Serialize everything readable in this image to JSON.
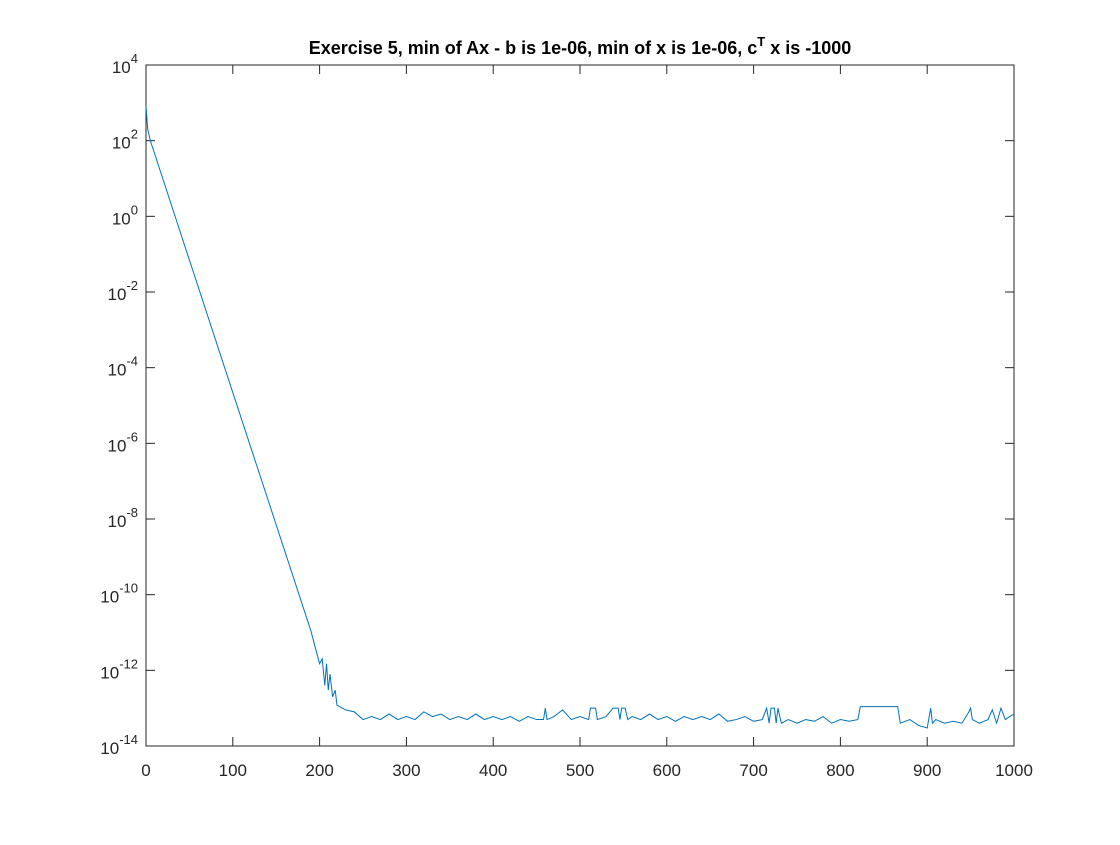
{
  "chart_data": {
    "type": "line",
    "title": [
      "Exercise 5, min of Ax - b is 1e-06, min of x is 1e-06, c",
      "T",
      " x is -1000"
    ],
    "x": [
      0,
      2,
      5,
      50,
      100,
      150,
      190,
      195,
      200,
      203,
      206,
      208,
      210,
      212,
      215,
      218,
      220,
      230,
      240,
      250,
      260,
      270,
      280,
      290,
      300,
      310,
      320,
      330,
      340,
      350,
      360,
      370,
      380,
      390,
      400,
      410,
      420,
      430,
      440,
      450,
      458,
      460,
      462,
      470,
      480,
      490,
      500,
      510,
      512,
      518,
      520,
      530,
      538,
      544,
      546,
      548,
      552,
      555,
      560,
      570,
      580,
      590,
      600,
      610,
      620,
      630,
      640,
      650,
      660,
      670,
      680,
      690,
      700,
      710,
      715,
      718,
      720,
      724,
      726,
      728,
      732,
      740,
      750,
      760,
      770,
      780,
      790,
      800,
      810,
      820,
      823,
      866,
      869,
      880,
      890,
      900,
      904,
      906,
      910,
      920,
      930,
      940,
      948,
      950,
      952,
      960,
      970,
      975,
      980,
      985,
      990,
      995,
      1000
    ],
    "values": [
      800,
      200,
      100,
      0.07,
      2.2e-05,
      7e-09,
      1.1e-11,
      4e-12,
      1.5e-12,
      2e-12,
      4e-13,
      1.5e-12,
      3e-13,
      8e-13,
      2e-13,
      3e-13,
      1.2e-13,
      9e-14,
      8e-14,
      5e-14,
      6e-14,
      5e-14,
      7e-14,
      5e-14,
      6e-14,
      5e-14,
      8e-14,
      6e-14,
      7e-14,
      5e-14,
      6e-14,
      5e-14,
      7e-14,
      5e-14,
      6e-14,
      5e-14,
      6e-14,
      4.5e-14,
      6e-14,
      5e-14,
      5e-14,
      1e-13,
      5e-14,
      6e-14,
      9e-14,
      5e-14,
      6e-14,
      5e-14,
      1e-13,
      1e-13,
      5e-14,
      6e-14,
      1e-13,
      1e-13,
      5e-14,
      1e-13,
      1e-13,
      5e-14,
      6e-14,
      5e-14,
      7e-14,
      5e-14,
      6e-14,
      4.5e-14,
      6e-14,
      5e-14,
      6e-14,
      5e-14,
      7e-14,
      4.5e-14,
      5e-14,
      6e-14,
      4.5e-14,
      5e-14,
      1e-13,
      4e-14,
      1e-13,
      1e-13,
      4e-14,
      1e-13,
      4e-14,
      5e-14,
      4e-14,
      5e-14,
      4.5e-14,
      6e-14,
      4e-14,
      5e-14,
      4.5e-14,
      5e-14,
      1.1e-13,
      1.1e-13,
      4e-14,
      5e-14,
      3.5e-14,
      3e-14,
      1e-13,
      4e-14,
      5e-14,
      4e-14,
      4.5e-14,
      4e-14,
      8e-14,
      1e-13,
      5e-14,
      4e-14,
      5e-14,
      9e-14,
      4e-14,
      1e-13,
      5e-14,
      6e-14,
      7e-14
    ],
    "color": "#0072bd",
    "xlim": [
      0,
      1000
    ],
    "xticks": [
      0,
      100,
      200,
      300,
      400,
      500,
      600,
      700,
      800,
      900,
      1000
    ],
    "ylim": [
      1e-14,
      10000
    ],
    "yscale": "log",
    "yticks": [
      {
        "value": 1e-14,
        "label": [
          "10",
          "-14"
        ]
      },
      {
        "value": 1e-12,
        "label": [
          "10",
          "-12"
        ]
      },
      {
        "value": 1e-10,
        "label": [
          "10",
          "-10"
        ]
      },
      {
        "value": 1e-08,
        "label": [
          "10",
          "-8"
        ]
      },
      {
        "value": 1e-06,
        "label": [
          "10",
          "-6"
        ]
      },
      {
        "value": 0.0001,
        "label": [
          "10",
          "-4"
        ]
      },
      {
        "value": 0.01,
        "label": [
          "10",
          "-2"
        ]
      },
      {
        "value": 1,
        "label": [
          "10",
          "0"
        ]
      },
      {
        "value": 100,
        "label": [
          "10",
          "2"
        ]
      },
      {
        "value": 10000,
        "label": [
          "10",
          "4"
        ]
      }
    ]
  }
}
